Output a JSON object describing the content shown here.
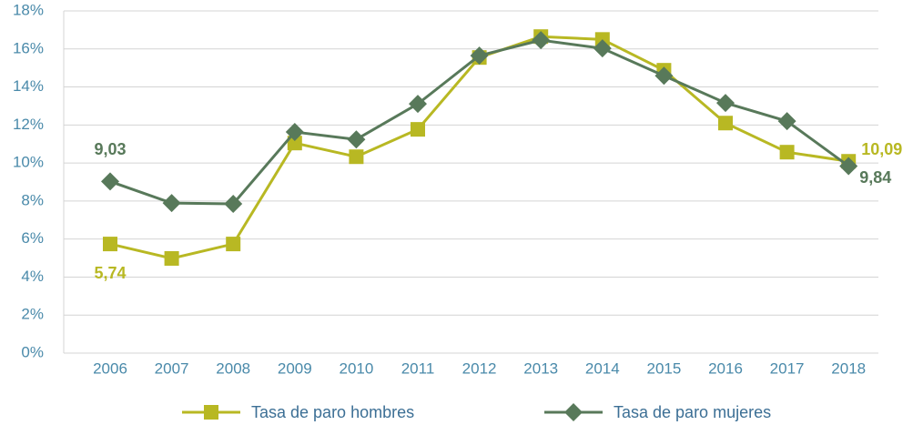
{
  "chart_data": {
    "type": "line",
    "categories": [
      "2006",
      "2007",
      "2008",
      "2009",
      "2010",
      "2011",
      "2012",
      "2013",
      "2014",
      "2015",
      "2016",
      "2017",
      "2018"
    ],
    "series": [
      {
        "name": "Tasa de paro hombres",
        "color": "#b8b823",
        "marker": "square",
        "values": [
          5.74,
          4.98,
          5.74,
          11.05,
          10.33,
          11.77,
          15.55,
          16.65,
          16.5,
          14.88,
          12.1,
          10.57,
          10.09
        ],
        "value_labels": [
          "5,74",
          null,
          null,
          null,
          null,
          null,
          null,
          null,
          null,
          null,
          null,
          null,
          "10,09"
        ]
      },
      {
        "name": "Tasa de paro mujeres",
        "color": "#58795a",
        "marker": "diamond",
        "values": [
          9.03,
          7.89,
          7.85,
          11.63,
          11.24,
          13.11,
          15.65,
          16.46,
          16.03,
          14.59,
          13.16,
          12.2,
          9.84
        ],
        "value_labels": [
          "9,03",
          null,
          null,
          null,
          null,
          null,
          null,
          null,
          null,
          null,
          null,
          null,
          "9,84"
        ]
      }
    ],
    "ylim": [
      0,
      18
    ],
    "yticks": [
      {
        "value": 0,
        "label": "0%"
      },
      {
        "value": 2,
        "label": "2%"
      },
      {
        "value": 4,
        "label": "4%"
      },
      {
        "value": 6,
        "label": "6%"
      },
      {
        "value": 8,
        "label": "8%"
      },
      {
        "value": 10,
        "label": "10%"
      },
      {
        "value": 12,
        "label": "12%"
      },
      {
        "value": 14,
        "label": "14%"
      },
      {
        "value": 16,
        "label": "16%"
      },
      {
        "value": 18,
        "label": "18%"
      }
    ],
    "grid": true,
    "legend": "bottom"
  }
}
